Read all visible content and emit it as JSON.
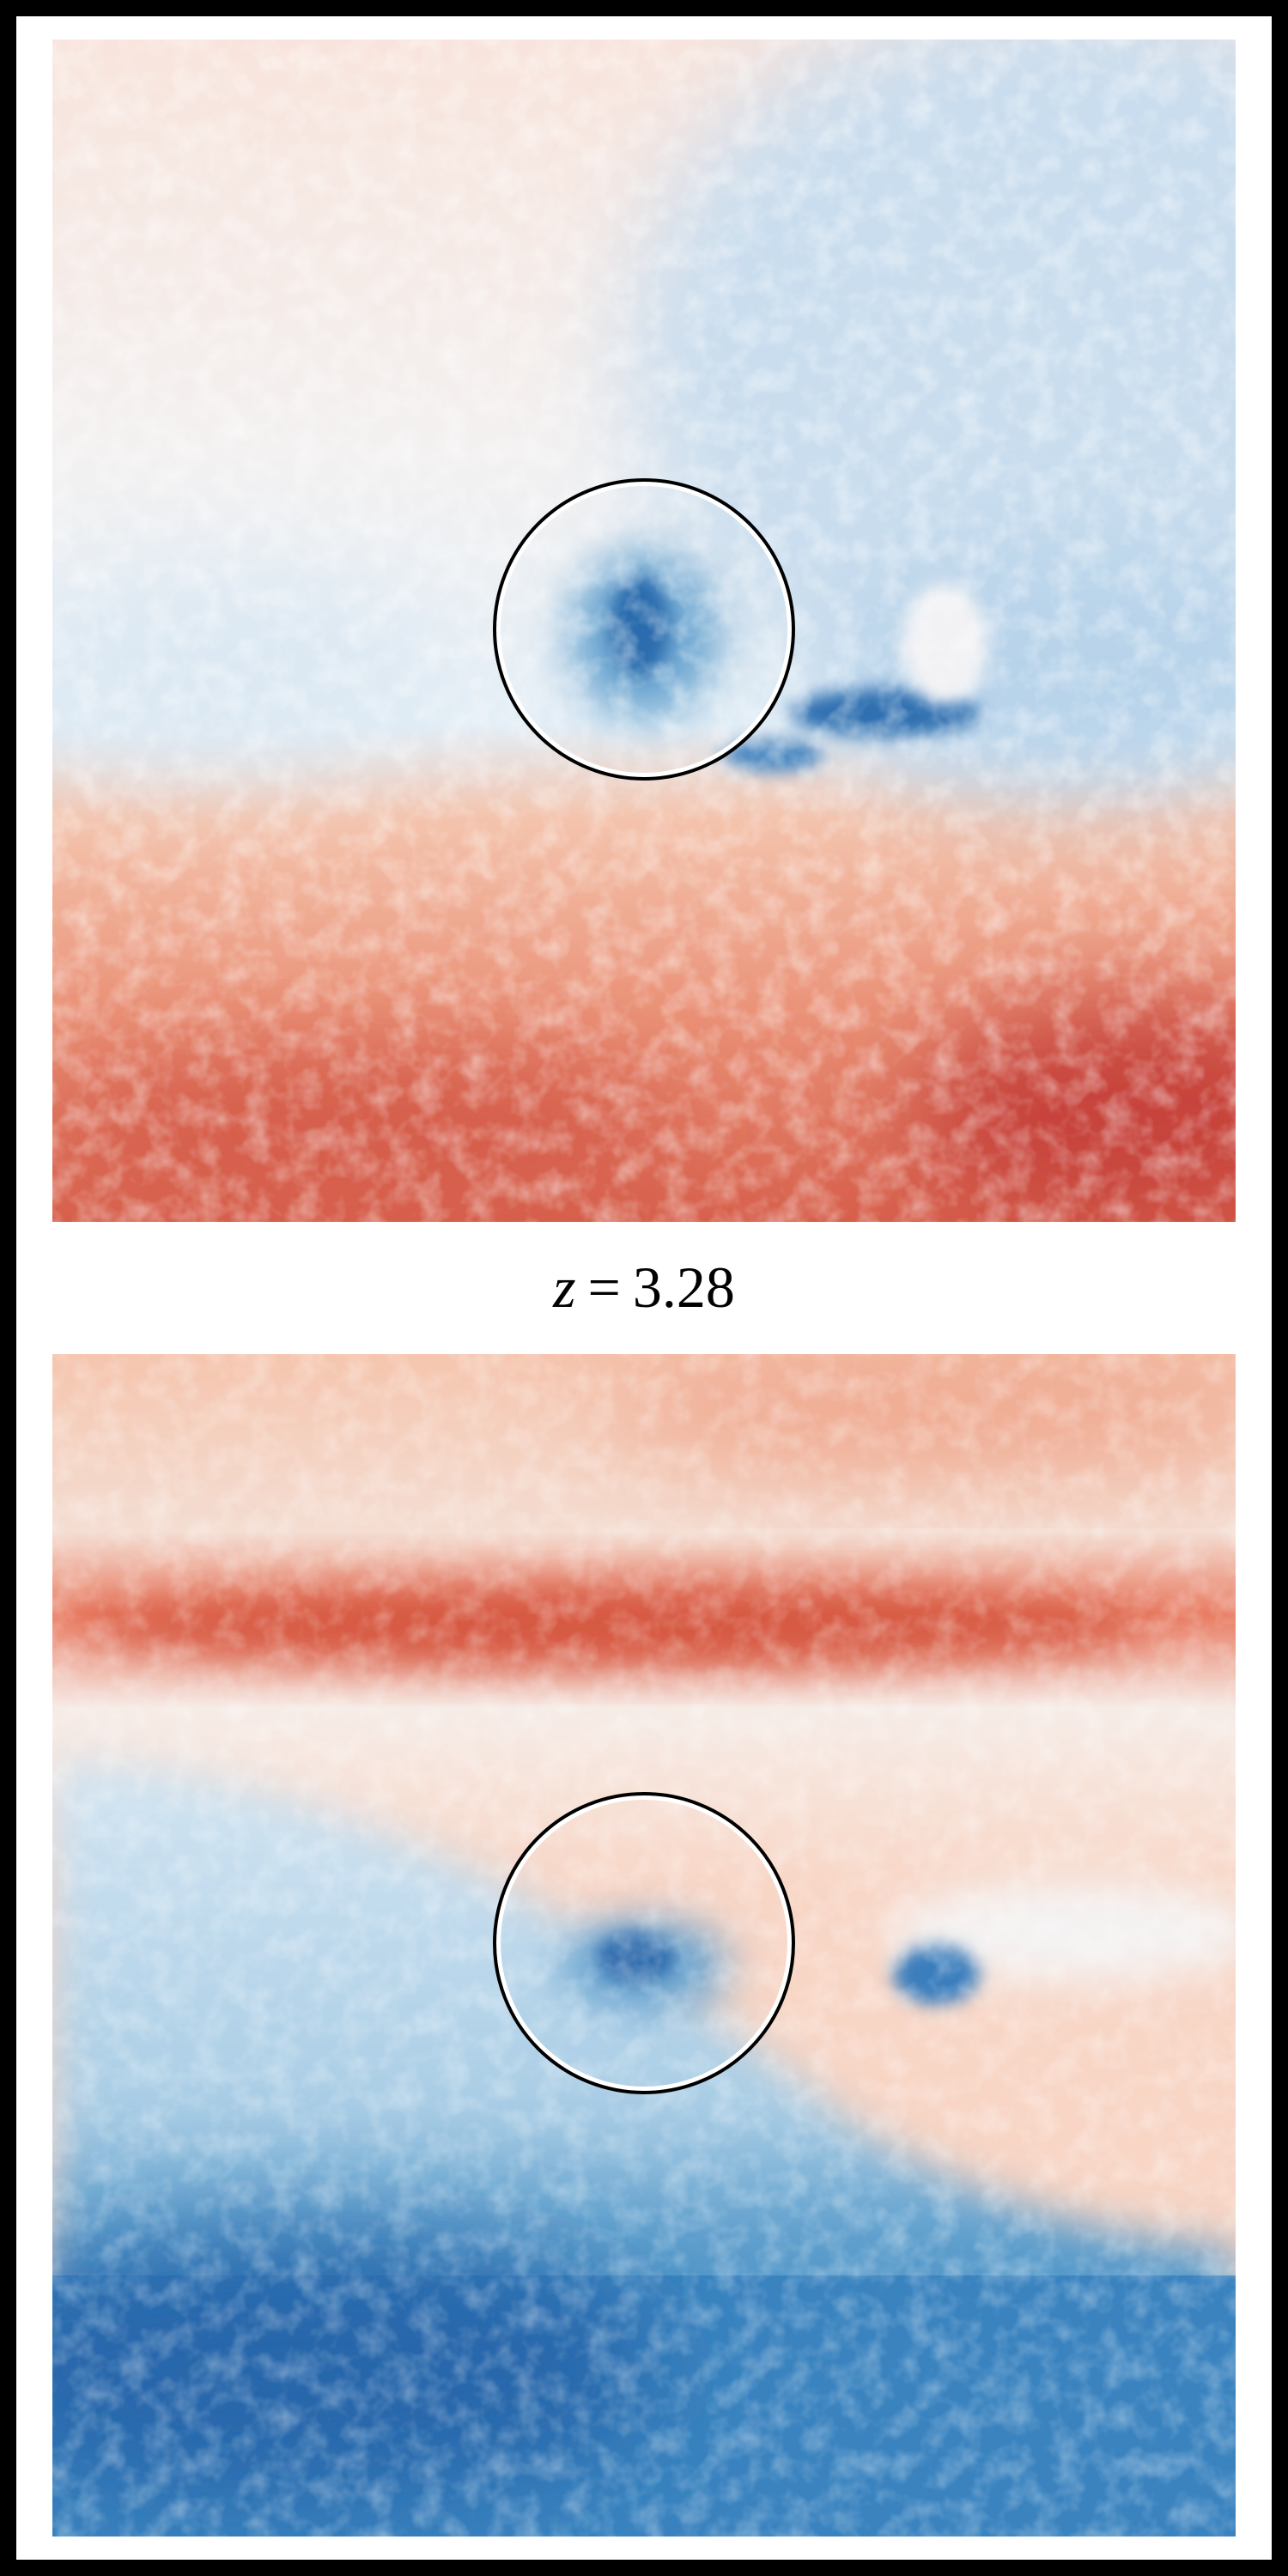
{
  "caption": {
    "variable": "z",
    "relation": "=",
    "value": "3.28"
  }
}
